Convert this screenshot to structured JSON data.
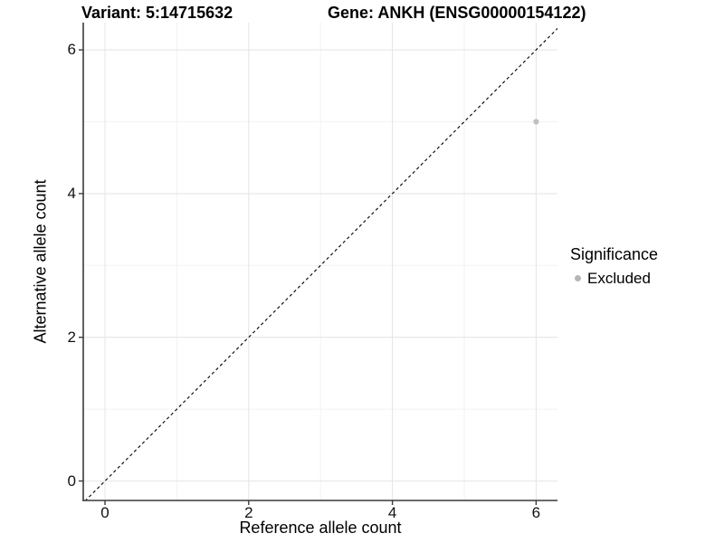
{
  "titles": {
    "variant": "Variant: 5:14715632",
    "gene": "Gene: ANKH (ENSG00000154122)"
  },
  "axis": {
    "x_label": "Reference allele count",
    "y_label": "Alternative allele count"
  },
  "legend": {
    "title": "Significance",
    "items": [
      {
        "label": "Excluded",
        "color": "#b5b5b5"
      }
    ]
  },
  "chart_data": {
    "type": "scatter",
    "title": "Variant: 5:14715632    Gene: ANKH (ENSG00000154122)",
    "xlabel": "Reference allele count",
    "ylabel": "Alternative allele count",
    "xlim": [
      -0.3,
      6.3
    ],
    "ylim": [
      -0.3,
      6.38
    ],
    "xticks": [
      0,
      2,
      4,
      6
    ],
    "yticks": [
      0,
      2,
      4,
      6
    ],
    "xminor_ticks": [
      1,
      3,
      5
    ],
    "yminor_ticks": [
      1,
      3,
      5
    ],
    "grid": "on",
    "legend_title": "Significance",
    "legend_position": "right",
    "series": [
      {
        "name": "Excluded",
        "color": "#c0c0c0",
        "points": [
          {
            "x": 6,
            "y": 5
          }
        ]
      }
    ],
    "reference_line": {
      "type": "identity (y = x)",
      "style": "dashed",
      "color": "#000000"
    }
  },
  "colors": {
    "background": "#ffffff",
    "grid_major": "#e6e6e6",
    "grid_minor": "#f2f2f2",
    "axis_line": "#3a3a3a",
    "tick_mark": "#3a3a3a",
    "text": "#000000"
  }
}
